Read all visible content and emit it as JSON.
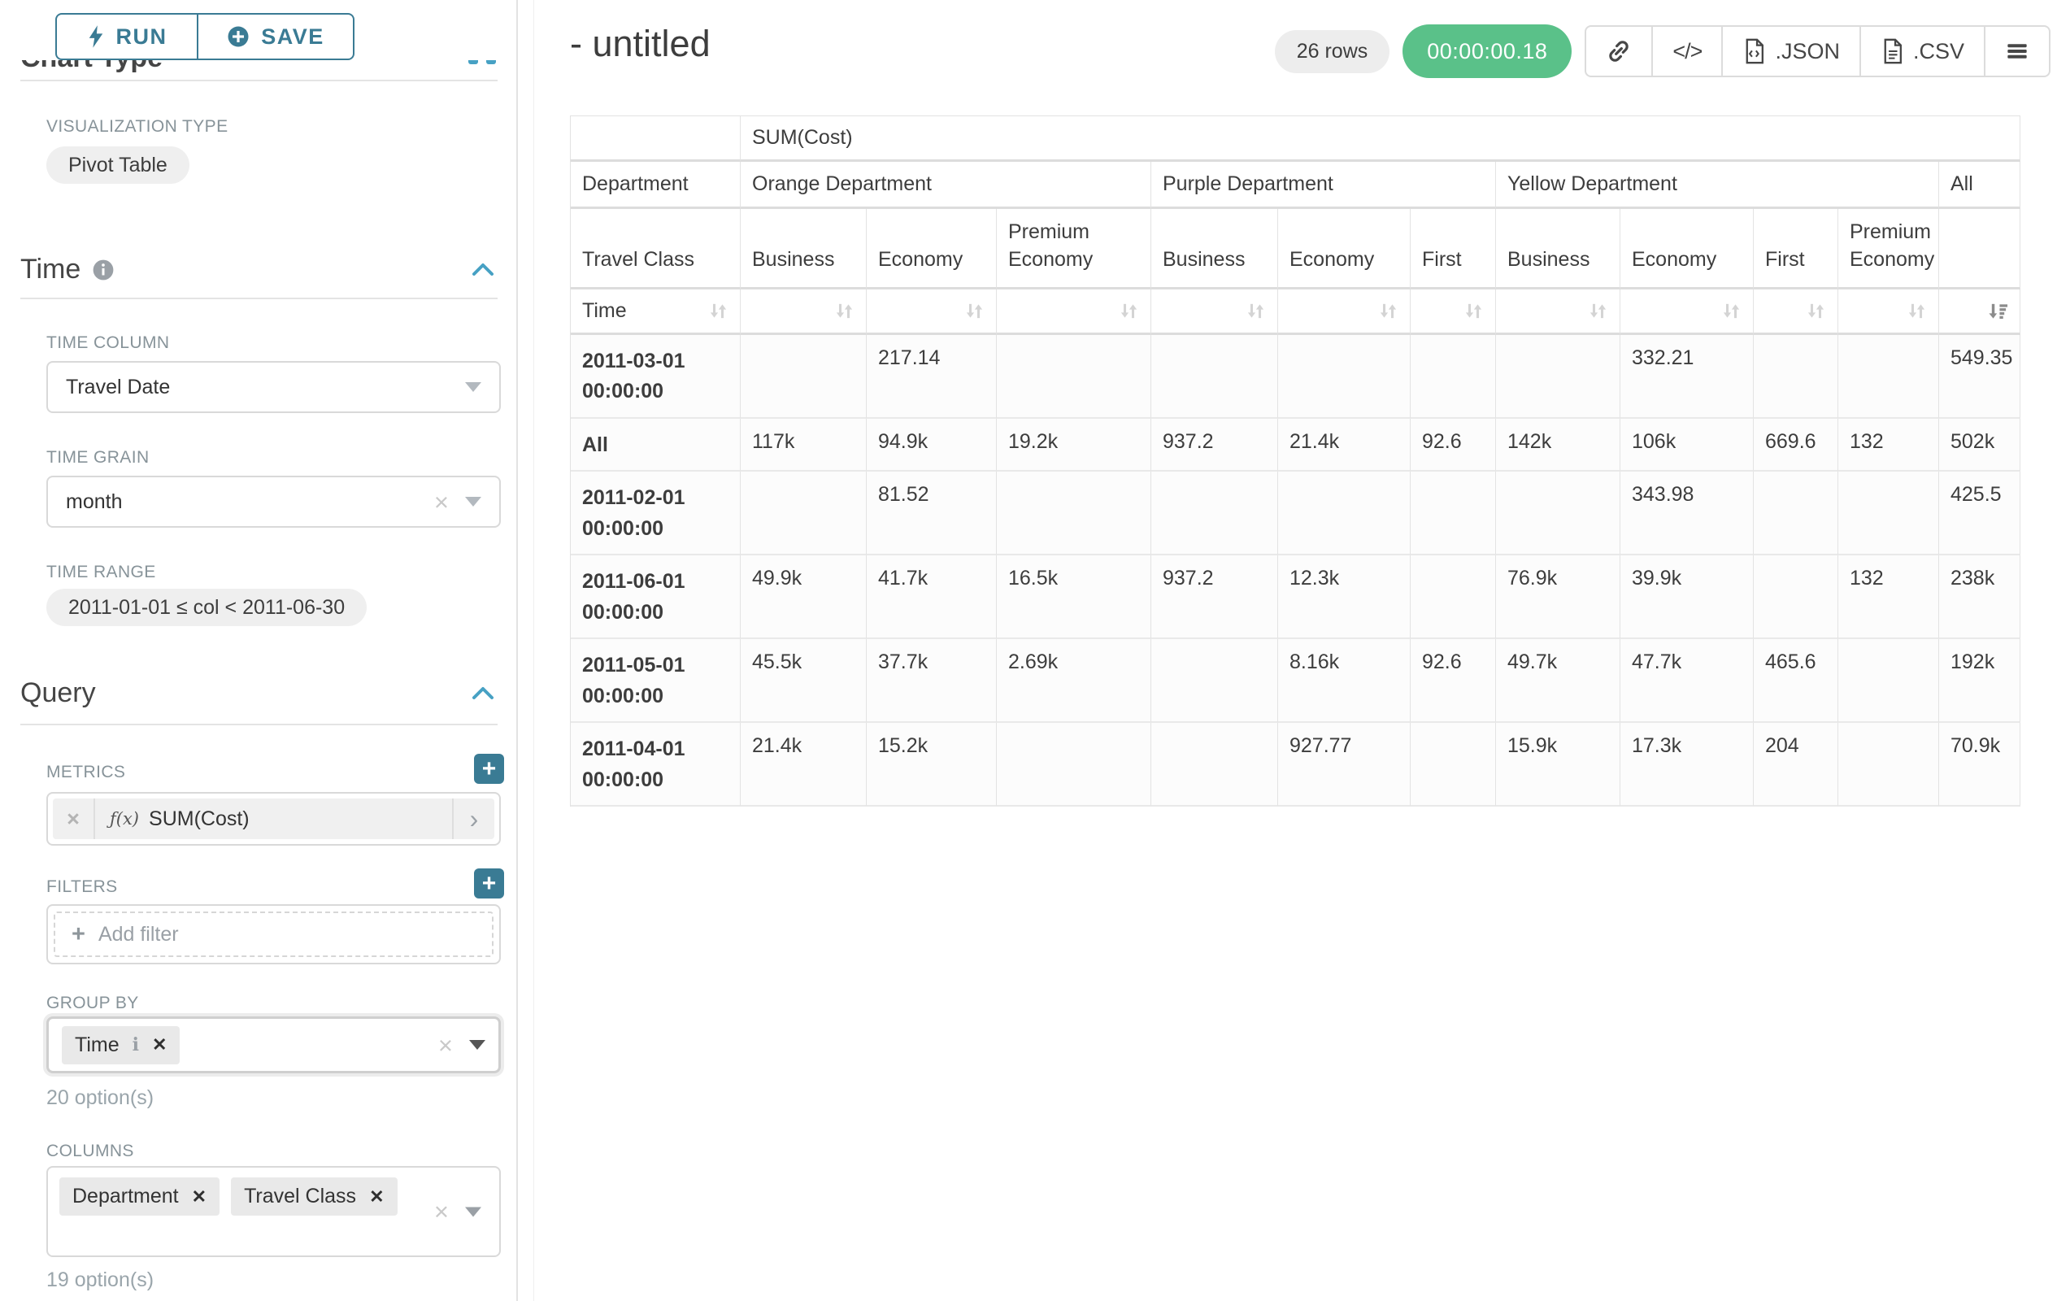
{
  "colors": {
    "accent_teal": "#3a7b94",
    "accent_blue": "#47a1c4",
    "success_green": "#5ac189"
  },
  "topbar": {
    "run_label": "RUN",
    "save_label": "SAVE"
  },
  "panel": {
    "section_title_cutoff": "Chart Type",
    "viz": {
      "label": "VISUALIZATION TYPE",
      "value": "Pivot Table"
    },
    "time": {
      "title": "Time",
      "column_label": "TIME COLUMN",
      "column_value": "Travel Date",
      "grain_label": "TIME GRAIN",
      "grain_value": "month",
      "range_label": "TIME RANGE",
      "range_value": "2011-01-01 ≤ col < 2011-06-30"
    },
    "query": {
      "title": "Query",
      "metrics_label": "METRICS",
      "metric": {
        "fx": "ƒ(x)",
        "name": "SUM(Cost)"
      },
      "filters_label": "FILTERS",
      "add_filter_placeholder": "Add filter",
      "groupby_label": "GROUP BY",
      "groupby_tag": "Time",
      "groupby_hint": "20 option(s)",
      "columns_label": "COLUMNS",
      "columns_tags": [
        "Department",
        "Travel Class"
      ],
      "columns_hint": "19 option(s)"
    }
  },
  "header": {
    "title": "- untitled",
    "rows_badge": "26 rows",
    "timer": "00:00:00.18",
    "json_label": ".JSON",
    "csv_label": ".CSV"
  },
  "chart_data": {
    "type": "table",
    "metric": "SUM(Cost)",
    "row_dimension": "Time",
    "column_dimensions": [
      "Department",
      "Travel Class"
    ],
    "column_groups": [
      {
        "name": "Orange Department",
        "classes": [
          "Business",
          "Economy",
          "Premium Economy"
        ]
      },
      {
        "name": "Purple Department",
        "classes": [
          "Business",
          "Economy",
          "First"
        ]
      },
      {
        "name": "Yellow Department",
        "classes": [
          "Business",
          "Economy",
          "First",
          "Premium Economy"
        ]
      },
      {
        "name": "All",
        "classes": [
          ""
        ]
      }
    ],
    "rows": [
      {
        "label": "2011-03-01 00:00:00",
        "values": [
          "",
          "217.14",
          "",
          "",
          "",
          "",
          "",
          "332.21",
          "",
          "",
          "549.35"
        ]
      },
      {
        "label": "All",
        "values": [
          "117k",
          "94.9k",
          "19.2k",
          "937.2",
          "21.4k",
          "92.6",
          "142k",
          "106k",
          "669.6",
          "132",
          "502k"
        ]
      },
      {
        "label": "2011-02-01 00:00:00",
        "values": [
          "",
          "81.52",
          "",
          "",
          "",
          "",
          "",
          "343.98",
          "",
          "",
          "425.5"
        ]
      },
      {
        "label": "2011-06-01 00:00:00",
        "values": [
          "49.9k",
          "41.7k",
          "16.5k",
          "937.2",
          "12.3k",
          "",
          "76.9k",
          "39.9k",
          "",
          "132",
          "238k"
        ]
      },
      {
        "label": "2011-05-01 00:00:00",
        "values": [
          "45.5k",
          "37.7k",
          "2.69k",
          "",
          "8.16k",
          "92.6",
          "49.7k",
          "47.7k",
          "465.6",
          "",
          "192k"
        ]
      },
      {
        "label": "2011-04-01 00:00:00",
        "values": [
          "21.4k",
          "15.2k",
          "",
          "",
          "927.77",
          "",
          "15.9k",
          "17.3k",
          "204",
          "",
          "70.9k"
        ]
      }
    ],
    "sort": {
      "column": "All",
      "direction": "desc"
    }
  }
}
